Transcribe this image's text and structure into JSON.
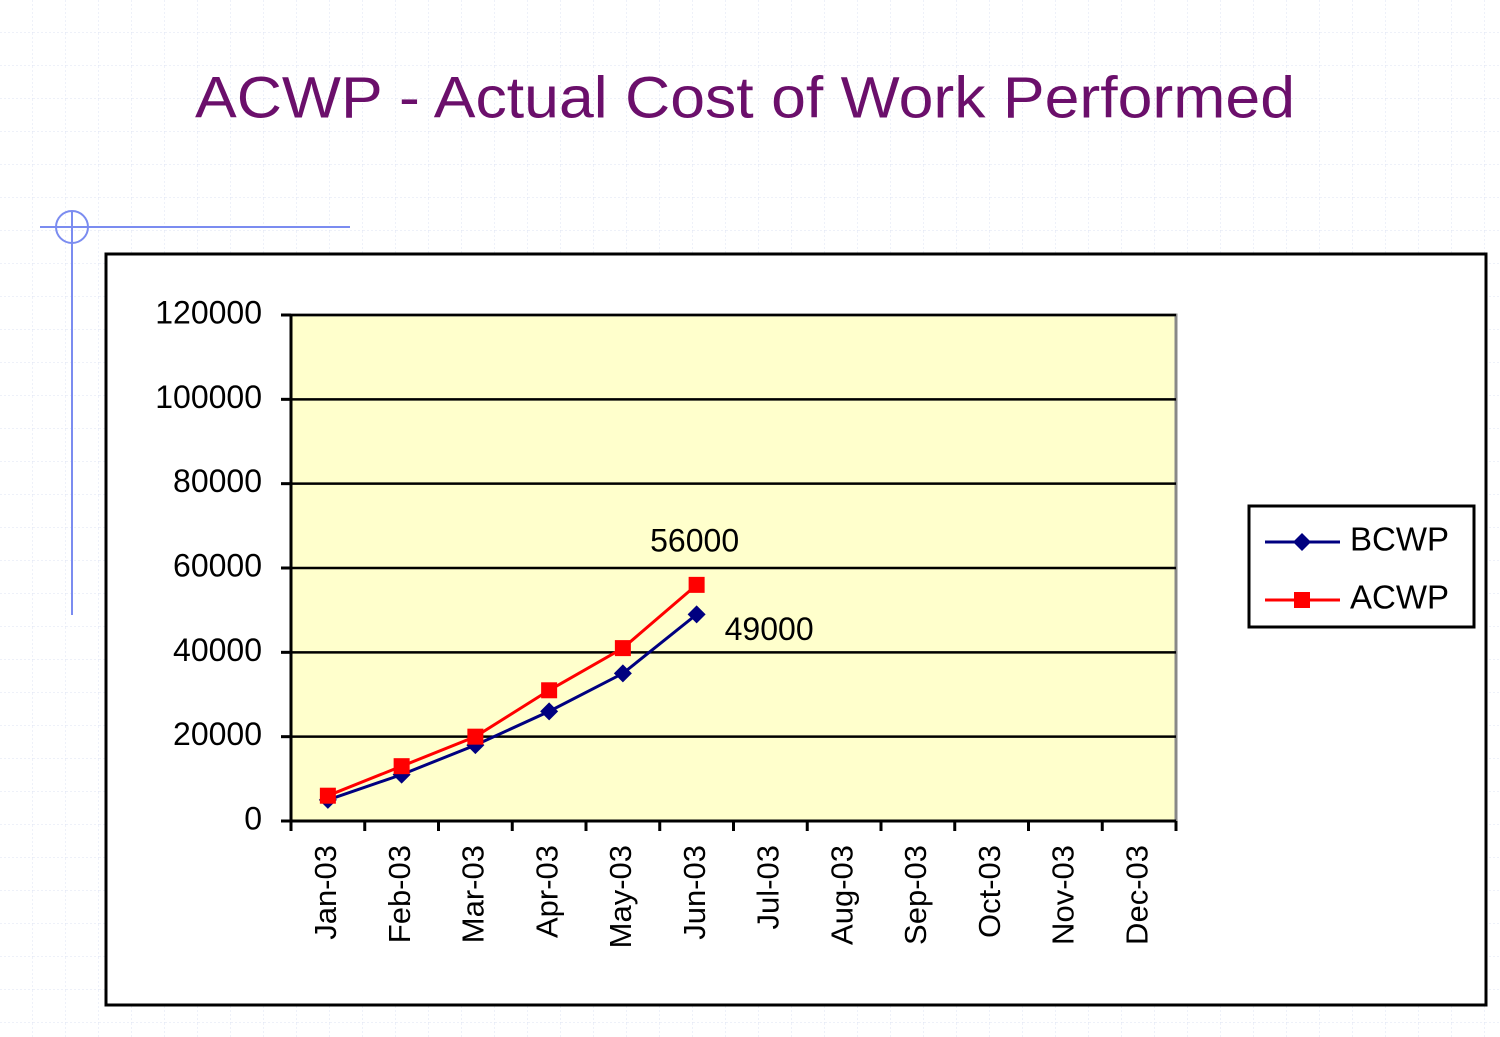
{
  "chart_data": {
    "type": "line",
    "title": "ACWP - Actual Cost of Work Performed",
    "categories": [
      "Jan-03",
      "Feb-03",
      "Mar-03",
      "Apr-03",
      "May-03",
      "Jun-03",
      "Jul-03",
      "Aug-03",
      "Sep-03",
      "Oct-03",
      "Nov-03",
      "Dec-03"
    ],
    "series": [
      {
        "name": "BCWP",
        "color": "#000080",
        "marker": "diamond",
        "values": [
          5000,
          11000,
          18000,
          26000,
          35000,
          49000,
          null,
          null,
          null,
          null,
          null,
          null
        ]
      },
      {
        "name": "ACWP",
        "color": "#ff0000",
        "marker": "square",
        "values": [
          6000,
          13000,
          20000,
          31000,
          41000,
          56000,
          null,
          null,
          null,
          null,
          null,
          null
        ]
      }
    ],
    "data_labels": "last",
    "ylim": [
      0,
      120000
    ],
    "yticks": [
      0,
      20000,
      40000,
      60000,
      80000,
      100000,
      120000
    ],
    "grid": true,
    "legend": "right",
    "plot_background": "#ffffcc"
  }
}
